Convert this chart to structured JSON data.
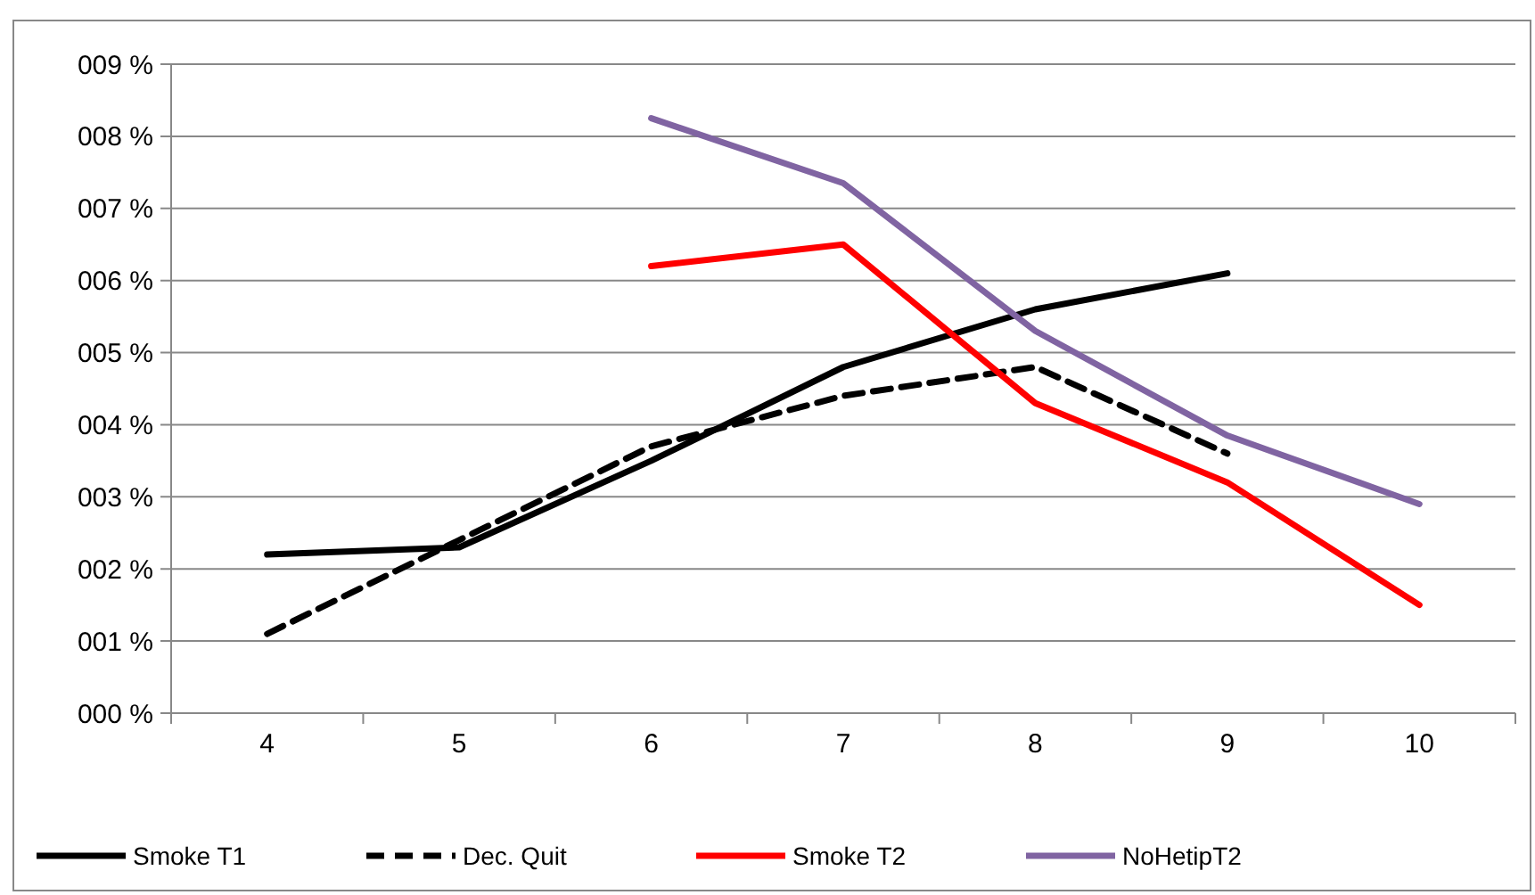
{
  "chart_data": {
    "type": "line",
    "categories": [
      "4",
      "5",
      "6",
      "7",
      "8",
      "9",
      "10"
    ],
    "series": [
      {
        "name": "Smoke T1",
        "color": "#000000",
        "line_style": "solid",
        "values": [
          2.2,
          2.3,
          3.5,
          4.8,
          5.6,
          6.1,
          null
        ]
      },
      {
        "name": "Dec. Quit",
        "color": "#000000",
        "line_style": "dashed",
        "values": [
          1.1,
          2.4,
          3.7,
          4.4,
          4.8,
          3.6,
          null
        ]
      },
      {
        "name": "Smoke T2",
        "color": "#ff0000",
        "line_style": "solid",
        "values": [
          null,
          null,
          6.2,
          6.5,
          4.3,
          3.2,
          1.5
        ]
      },
      {
        "name": "NoHetipT2",
        "color": "#8064a2",
        "line_style": "solid",
        "values": [
          null,
          null,
          8.25,
          7.35,
          5.3,
          3.85,
          2.9
        ]
      }
    ],
    "ylim": [
      0,
      9
    ],
    "yticks": [
      {
        "value": 0,
        "label": "000 %"
      },
      {
        "value": 1,
        "label": "001 %"
      },
      {
        "value": 2,
        "label": "002 %"
      },
      {
        "value": 3,
        "label": "003 %"
      },
      {
        "value": 4,
        "label": "004 %"
      },
      {
        "value": 5,
        "label": "005 %"
      },
      {
        "value": 6,
        "label": "006 %"
      },
      {
        "value": 7,
        "label": "007 %"
      },
      {
        "value": 8,
        "label": "008 %"
      },
      {
        "value": 9,
        "label": "009 %"
      }
    ],
    "grid": "y",
    "legend": "bottom",
    "marker": "none"
  }
}
